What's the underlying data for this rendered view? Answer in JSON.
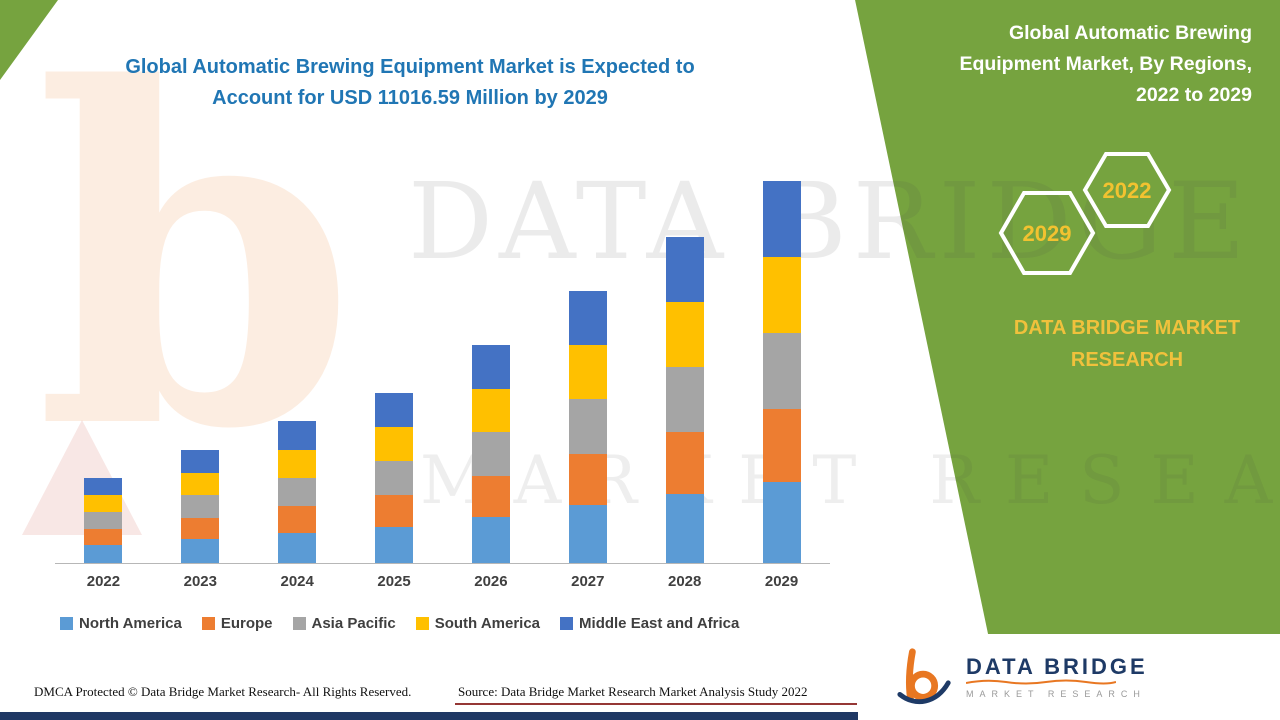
{
  "colors": {
    "panel_green": "#76A33F",
    "title_blue": "#2076B4",
    "accent_yellow": "#F2C230",
    "footer_navy": "#1F3864",
    "source_rule_maroon": "#953735"
  },
  "title": {
    "line1": "Global Automatic Brewing Equipment Market is Expected to",
    "line2": "Account for USD 11016.59 Million by 2029"
  },
  "right_panel": {
    "heading": "Global Automatic Brewing Equipment Market, By Regions, 2022 to 2029",
    "hexagon_back_label": "2029",
    "hexagon_front_label": "2022",
    "brand_caption": "DATA BRIDGE MARKET RESEARCH"
  },
  "watermark": {
    "letter": "b",
    "brand_line": "DATA BRIDGE",
    "tagline_line": "MARKET RESEARCH"
  },
  "chart_data": {
    "type": "bar",
    "stacked": true,
    "title": "Global Automatic Brewing Equipment Market is Expected to Account for USD 11016.59 Million by 2029",
    "unit_note": "USD Million",
    "values_estimated_from_bar_heights": true,
    "total_2029": 11016.59,
    "categories": [
      "2022",
      "2023",
      "2024",
      "2025",
      "2026",
      "2027",
      "2028",
      "2029"
    ],
    "series": [
      {
        "name": "North America",
        "color": "#5B9BD5",
        "values": [
          520,
          690,
          865,
          1040,
          1330,
          1665,
          1990,
          2340
        ]
      },
      {
        "name": "Europe",
        "color": "#ED7D31",
        "values": [
          465,
          620,
          775,
          930,
          1195,
          1490,
          1785,
          2090
        ]
      },
      {
        "name": "Asia Pacific",
        "color": "#A5A5A5",
        "values": [
          490,
          650,
          815,
          980,
          1255,
          1570,
          1880,
          2200
        ]
      },
      {
        "name": "South America",
        "color": "#FFC000",
        "values": [
          490,
          650,
          815,
          980,
          1255,
          1570,
          1880,
          2200
        ]
      },
      {
        "name": "Middle East and Africa",
        "color": "#4472C4",
        "values": [
          485,
          640,
          810,
          970,
          1245,
          1555,
          1865,
          2186.59
        ]
      }
    ],
    "ylim": [
      0,
      11100
    ],
    "grid": false,
    "legend_position": "bottom"
  },
  "footer": {
    "dmca": "DMCA Protected © Data Bridge Market Research- All Rights Reserved.",
    "source": "Source: Data Bridge Market Research Market Analysis Study 2022"
  },
  "logo": {
    "brand": "DATA BRIDGE",
    "tagline": "MARKET RESEARCH"
  }
}
